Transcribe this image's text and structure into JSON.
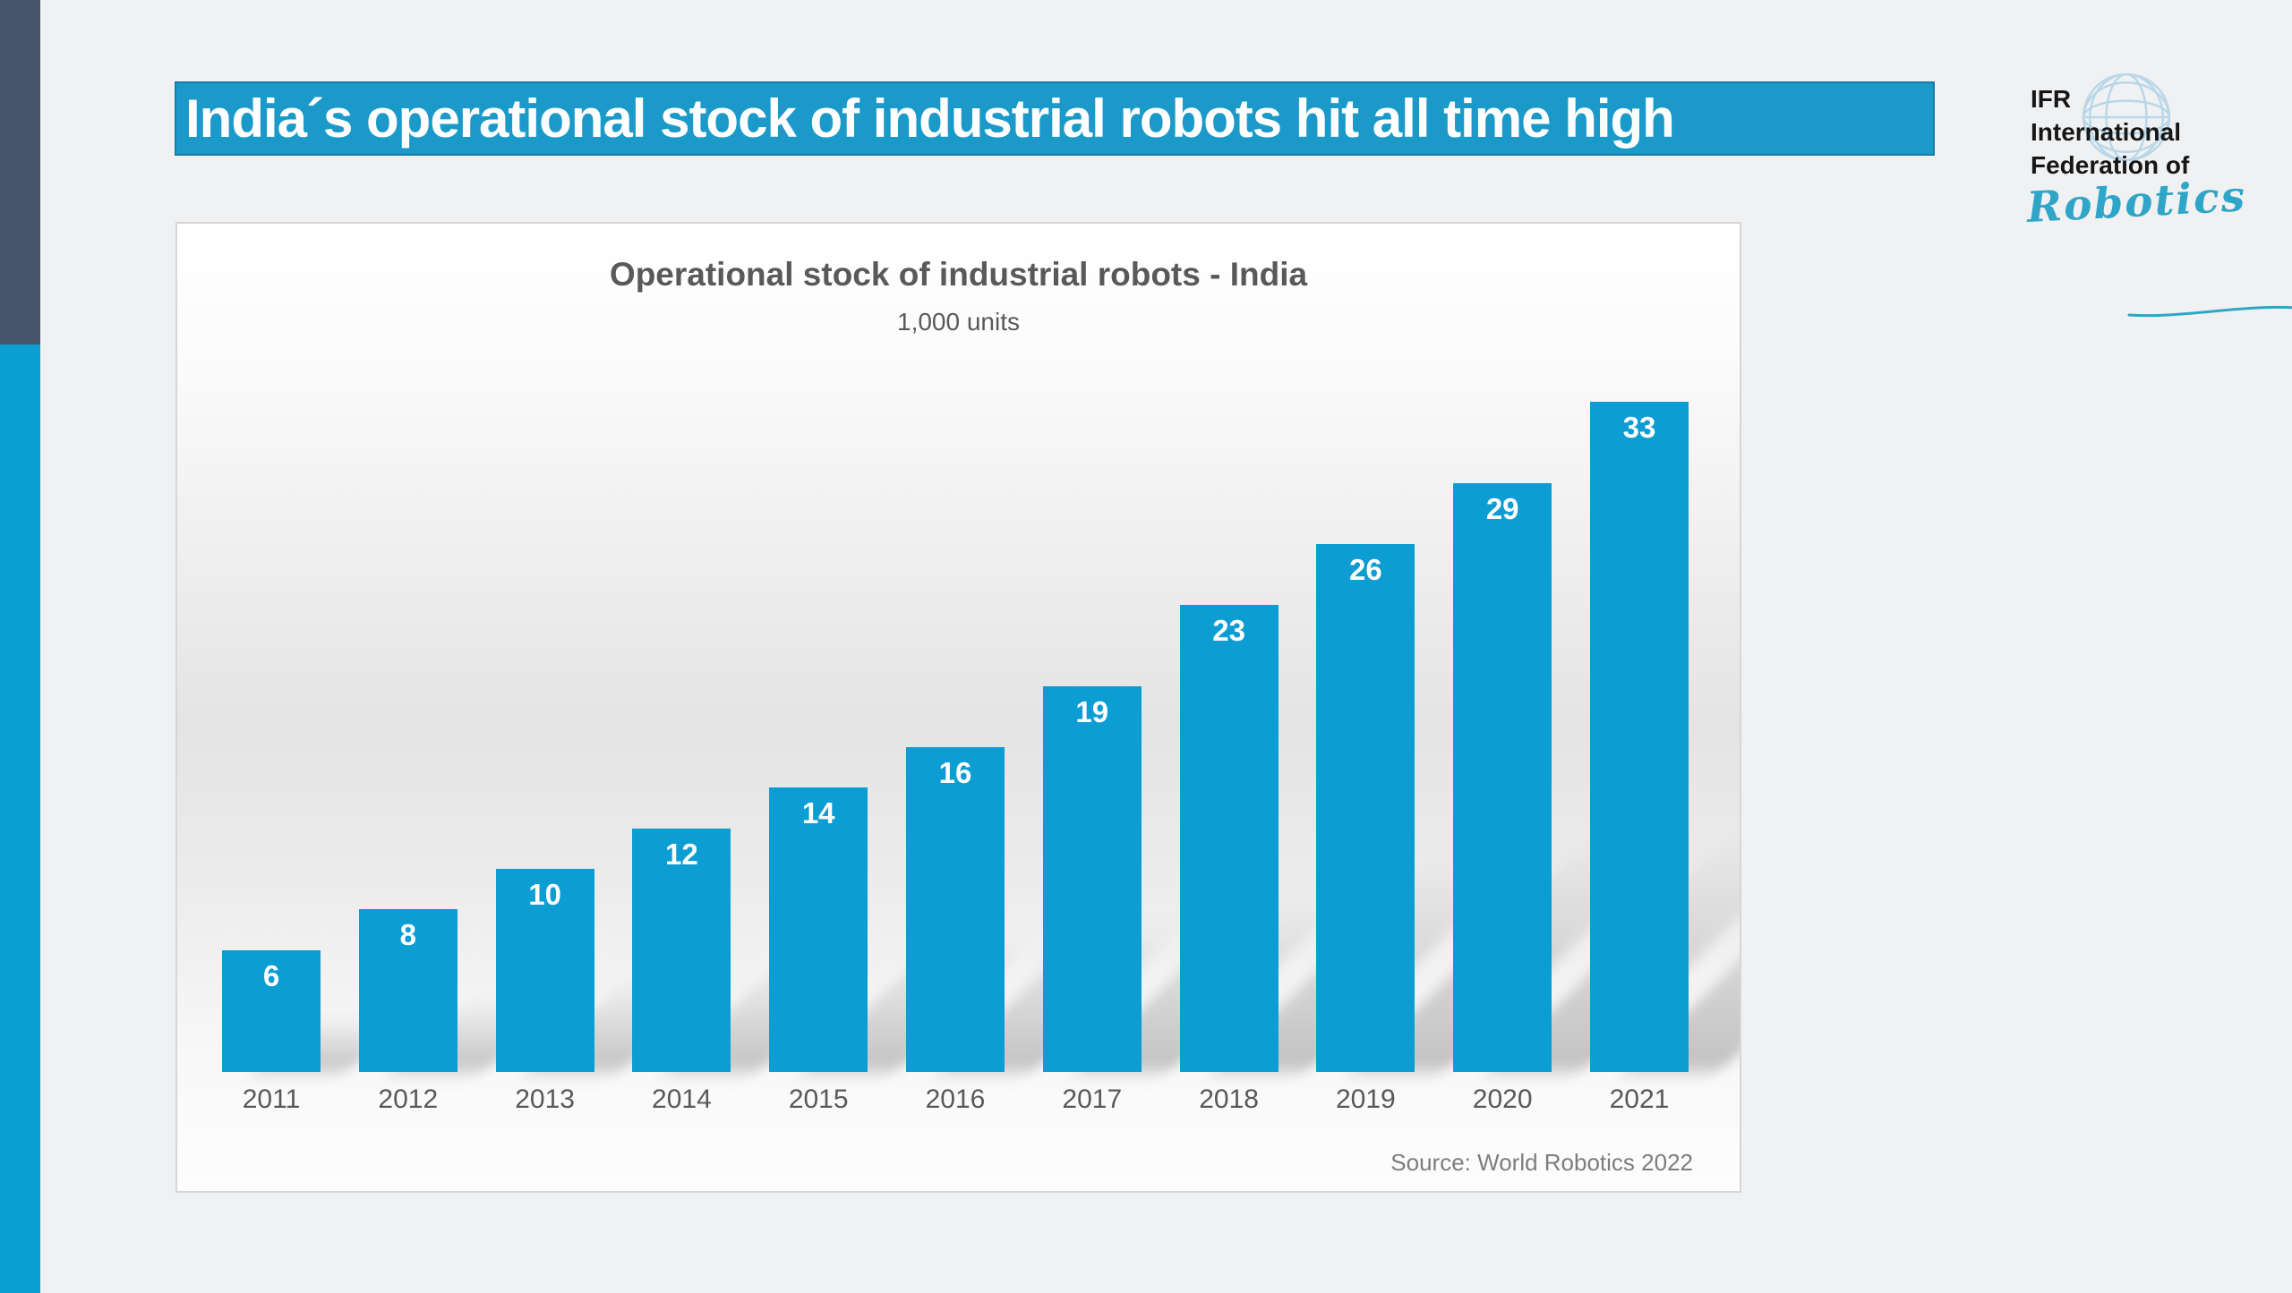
{
  "page": {
    "background": "#f0f1f2"
  },
  "accents": {
    "left_bar_dark": "#46536b",
    "left_bar_cyan": "#0a9ed2",
    "headline_bg": "#1b9aca",
    "bar_color": "#0c9dd3",
    "script_color": "#2fa5c8",
    "globe_color": "#b9d7e8"
  },
  "headline": {
    "text": "India´s operational stock of industrial robots hit all time high"
  },
  "logo": {
    "line1": "IFR",
    "line2": "International",
    "line3": "Federation of",
    "script": "Robotics",
    "globe_icon": "globe-icon"
  },
  "chart_data": {
    "type": "bar",
    "title": "Operational stock of industrial robots - India",
    "subtitle": "1,000 units",
    "categories": [
      "2011",
      "2012",
      "2013",
      "2014",
      "2015",
      "2016",
      "2017",
      "2018",
      "2019",
      "2020",
      "2021"
    ],
    "values": [
      6,
      8,
      10,
      12,
      14,
      16,
      19,
      23,
      26,
      29,
      33
    ],
    "ylabel": "1,000 units",
    "xlabel": "",
    "ylim": [
      0,
      33
    ],
    "grid": false,
    "legend": "none",
    "value_labels": "inside-top, white bold",
    "source": "Source: World Robotics 2022"
  }
}
